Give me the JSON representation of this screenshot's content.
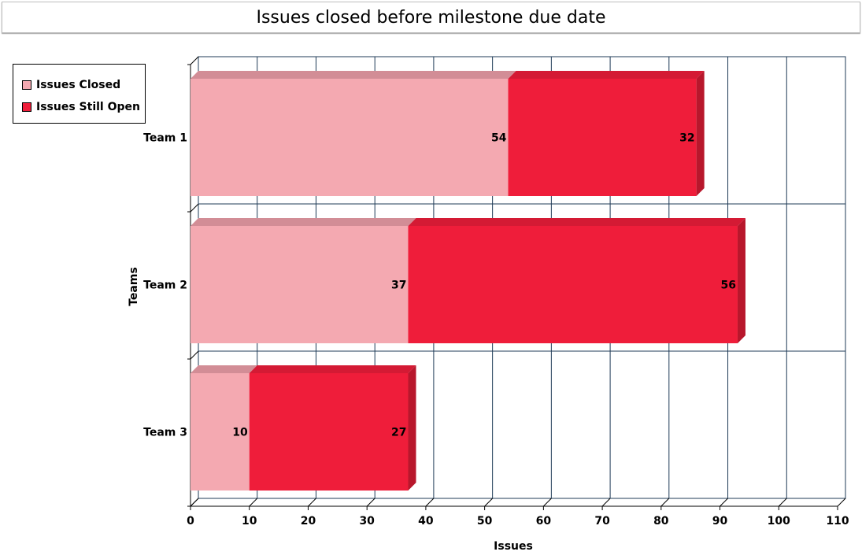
{
  "chart_data": {
    "type": "bar",
    "orientation": "horizontal",
    "stacked": true,
    "title": "Issues closed before milestone due date",
    "xlabel": "Issues",
    "ylabel": "Teams",
    "categories": [
      "Team 1",
      "Team 2",
      "Team 3"
    ],
    "series": [
      {
        "name": "Issues Closed",
        "values": [
          54,
          37,
          10
        ],
        "color": "#f4a9b1",
        "top_color": "#d28d96",
        "side_color": "#c78a92"
      },
      {
        "name": "Issues Still Open",
        "values": [
          32,
          56,
          27
        ],
        "color": "#ef1d3a",
        "top_color": "#d41a34",
        "side_color": "#b8172c"
      }
    ],
    "xlim": [
      0,
      110
    ],
    "xticks": [
      0,
      10,
      20,
      30,
      40,
      50,
      60,
      70,
      80,
      90,
      100,
      110
    ],
    "grid": true,
    "grid_color": "#1f3b57",
    "legend_position": "top-left"
  }
}
